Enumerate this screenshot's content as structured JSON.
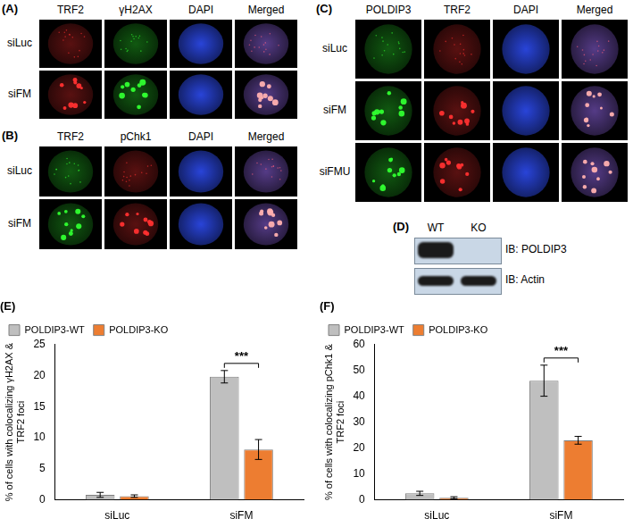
{
  "microscopy": [
    {
      "label": "(A)",
      "columns": [
        "TRF2",
        "γH2AX",
        "DAPI",
        "Merged"
      ],
      "rows": [
        "siLuc",
        "siFM"
      ]
    },
    {
      "label": "(B)",
      "columns": [
        "TRF2",
        "pChk1",
        "DAPI",
        "Merged"
      ],
      "rows": [
        "siLuc",
        "siFM"
      ]
    },
    {
      "label": "(C)",
      "columns": [
        "POLDIP3",
        "TRF2",
        "DAPI",
        "Merged"
      ],
      "rows": [
        "siLuc",
        "siFM",
        "siFMU"
      ]
    }
  ],
  "blot": {
    "label": "(D)",
    "lanes": [
      "WT",
      "KO"
    ],
    "rows": [
      "IB: POLDIP3",
      "IB: Actin"
    ],
    "bands": [
      [
        true,
        false
      ],
      [
        true,
        true
      ]
    ]
  },
  "chart_data": [
    {
      "type": "bar",
      "title": "(E)",
      "y_label": [
        "% of cells with colocalizing γH2AX &",
        "TRF2 foci"
      ],
      "categories": [
        "siLuc",
        "siFM"
      ],
      "series": [
        {
          "name": "POLDIP3-WT",
          "color": "#bfbfbf",
          "values": [
            0.8,
            19.8
          ],
          "errors": [
            0.4,
            1.0
          ]
        },
        {
          "name": "POLDIP3-KO",
          "color": "#ed7d31",
          "values": [
            0.6,
            8.1
          ],
          "errors": [
            0.2,
            1.6
          ]
        }
      ],
      "ylim": [
        0,
        25
      ],
      "yticks": [
        0,
        5,
        10,
        15,
        20,
        25
      ],
      "grid": false,
      "legend": "upper left",
      "annotations": [
        {
          "text": "***",
          "category": "siFM",
          "between": [
            "POLDIP3-WT",
            "POLDIP3-KO"
          ]
        }
      ]
    },
    {
      "type": "bar",
      "title": "(F)",
      "y_label": [
        "% of cells with colocalizing pChk1 &",
        "TRF2 foci"
      ],
      "categories": [
        "siLuc",
        "siFM"
      ],
      "series": [
        {
          "name": "POLDIP3-WT",
          "color": "#bfbfbf",
          "values": [
            2.5,
            46
          ],
          "errors": [
            0.8,
            6
          ]
        },
        {
          "name": "POLDIP3-KO",
          "color": "#ed7d31",
          "values": [
            0.8,
            23
          ],
          "errors": [
            0.4,
            1.5
          ]
        }
      ],
      "ylim": [
        0,
        60
      ],
      "yticks": [
        0,
        10,
        20,
        30,
        40,
        50,
        60
      ],
      "grid": false,
      "legend": "upper left",
      "annotations": [
        {
          "text": "***",
          "category": "siFM",
          "between": [
            "POLDIP3-WT",
            "POLDIP3-KO"
          ]
        }
      ]
    }
  ]
}
